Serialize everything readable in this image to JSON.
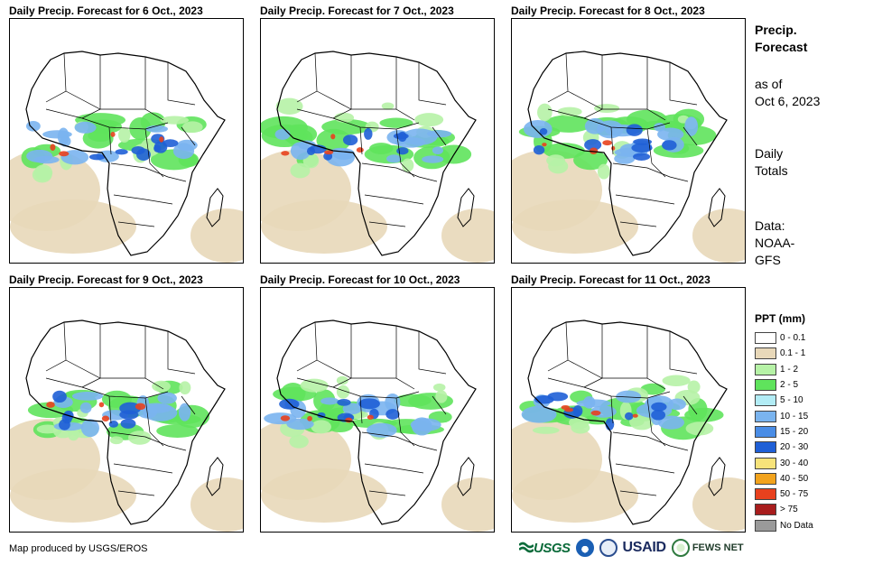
{
  "panels": [
    {
      "title": "Daily Precip. Forecast for 6 Oct., 2023"
    },
    {
      "title": "Daily Precip. Forecast for 7 Oct., 2023"
    },
    {
      "title": "Daily Precip. Forecast for 8 Oct., 2023"
    },
    {
      "title": "Daily Precip. Forecast for 9 Oct., 2023"
    },
    {
      "title": "Daily Precip. Forecast for 10 Oct., 2023"
    },
    {
      "title": "Daily Precip. Forecast for 11 Oct., 2023"
    }
  ],
  "sidebar": {
    "title_line1": "Precip.",
    "title_line2": "Forecast",
    "asof_line1": "as of",
    "asof_line2": "Oct 6, 2023",
    "totals_line1": "Daily",
    "totals_line2": "Totals",
    "data_line1": "Data:",
    "data_line2": "NOAA-",
    "data_line3": "GFS"
  },
  "legend": {
    "title": "PPT (mm)",
    "items": [
      {
        "label": "0 - 0.1",
        "color": "#ffffff"
      },
      {
        "label": "0.1 - 1",
        "color": "#e8d8b9"
      },
      {
        "label": "1 - 2",
        "color": "#b6f2a6"
      },
      {
        "label": "2 - 5",
        "color": "#5fe35c"
      },
      {
        "label": "5 - 10",
        "color": "#b2ecf5"
      },
      {
        "label": "10 - 15",
        "color": "#7ab4ef"
      },
      {
        "label": "15 - 20",
        "color": "#4a8de6"
      },
      {
        "label": "20 - 30",
        "color": "#1f5fd6"
      },
      {
        "label": "30 - 40",
        "color": "#f7e37a"
      },
      {
        "label": "40 - 50",
        "color": "#f2a31d"
      },
      {
        "label": "50 - 75",
        "color": "#e8411e"
      },
      {
        "label": "> 75",
        "color": "#a81d1d"
      },
      {
        "label": "No Data",
        "color": "#9a9a9a"
      }
    ]
  },
  "credit": "Map produced by USGS/EROS",
  "logos": {
    "usgs": "USGS",
    "usaid": "USAID",
    "fews": "FEWS NET"
  }
}
